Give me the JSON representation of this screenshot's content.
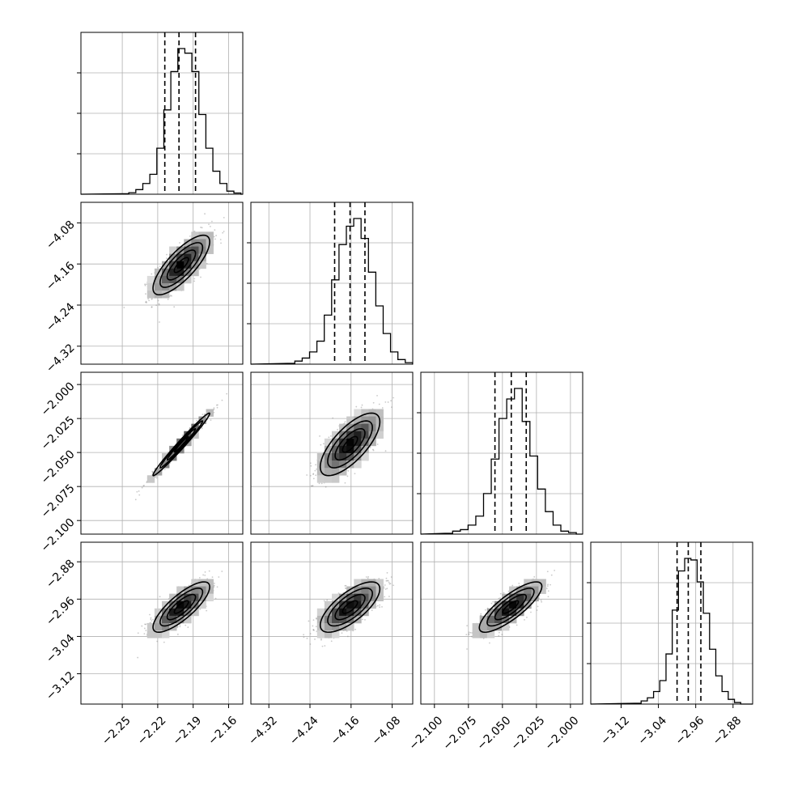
{
  "chart_data": {
    "type": "corner",
    "grid": true,
    "parameters": [
      {
        "range": [
          -2.285,
          -2.148
        ],
        "ticks": [
          "−2.25",
          "−2.22",
          "−2.19",
          "−2.16"
        ],
        "tick_values": [
          -2.25,
          -2.22,
          -2.19,
          -2.16
        ],
        "quantiles": [
          -2.214,
          -2.202,
          -2.188
        ],
        "mean": -2.2,
        "sigma": 0.012,
        "hist_counts": [
          0.003,
          0.01,
          0.03,
          0.07,
          0.13,
          0.3,
          0.55,
          0.8,
          0.95,
          0.92,
          0.8,
          0.52,
          0.3,
          0.15,
          0.07,
          0.02,
          0.008
        ]
      },
      {
        "range": [
          -4.355,
          -4.04
        ],
        "ticks": [
          "−4.32",
          "−4.24",
          "−4.16",
          "−4.08"
        ],
        "tick_values": [
          -4.32,
          -4.24,
          -4.16,
          -4.08
        ],
        "quantiles": [
          -4.192,
          -4.162,
          -4.133
        ],
        "mean": -4.162,
        "sigma": 0.029,
        "hist_counts": [
          0.005,
          0.02,
          0.04,
          0.08,
          0.15,
          0.32,
          0.55,
          0.78,
          0.9,
          0.95,
          0.82,
          0.6,
          0.38,
          0.2,
          0.08,
          0.03,
          0.01
        ]
      },
      {
        "range": [
          -2.11,
          -1.991
        ],
        "ticks": [
          "−2.100",
          "−2.075",
          "−2.050",
          "−2.025",
          "−2.000"
        ],
        "tick_values": [
          -2.1,
          -2.075,
          -2.05,
          -2.025,
          -2.0
        ],
        "quantiles": [
          -2.0555,
          -2.0435,
          -2.0325
        ],
        "mean": -2.044,
        "sigma": 0.0115,
        "hist_counts": [
          0.005,
          0.02,
          0.03,
          0.06,
          0.12,
          0.27,
          0.5,
          0.77,
          0.9,
          0.97,
          0.75,
          0.52,
          0.3,
          0.15,
          0.06,
          0.02,
          0.01
        ]
      },
      {
        "range": [
          -3.185,
          -2.838
        ],
        "ticks": [
          "−3.12",
          "−3.04",
          "−2.96",
          "−2.88"
        ],
        "tick_values": [
          -3.12,
          -3.04,
          -2.96,
          -2.88
        ],
        "quantiles": [
          -3.0,
          -2.976,
          -2.949
        ],
        "mean": -2.977,
        "sigma": 0.027,
        "hist_counts": [
          0.005,
          0.02,
          0.04,
          0.08,
          0.15,
          0.32,
          0.6,
          0.85,
          0.93,
          0.92,
          0.78,
          0.58,
          0.35,
          0.18,
          0.08,
          0.03,
          0.01
        ]
      }
    ],
    "correlations": {
      "1-0": 0.78,
      "2-0": 0.985,
      "2-1": 0.72,
      "3-0": 0.8,
      "3-1": 0.72,
      "3-2": 0.82
    }
  }
}
